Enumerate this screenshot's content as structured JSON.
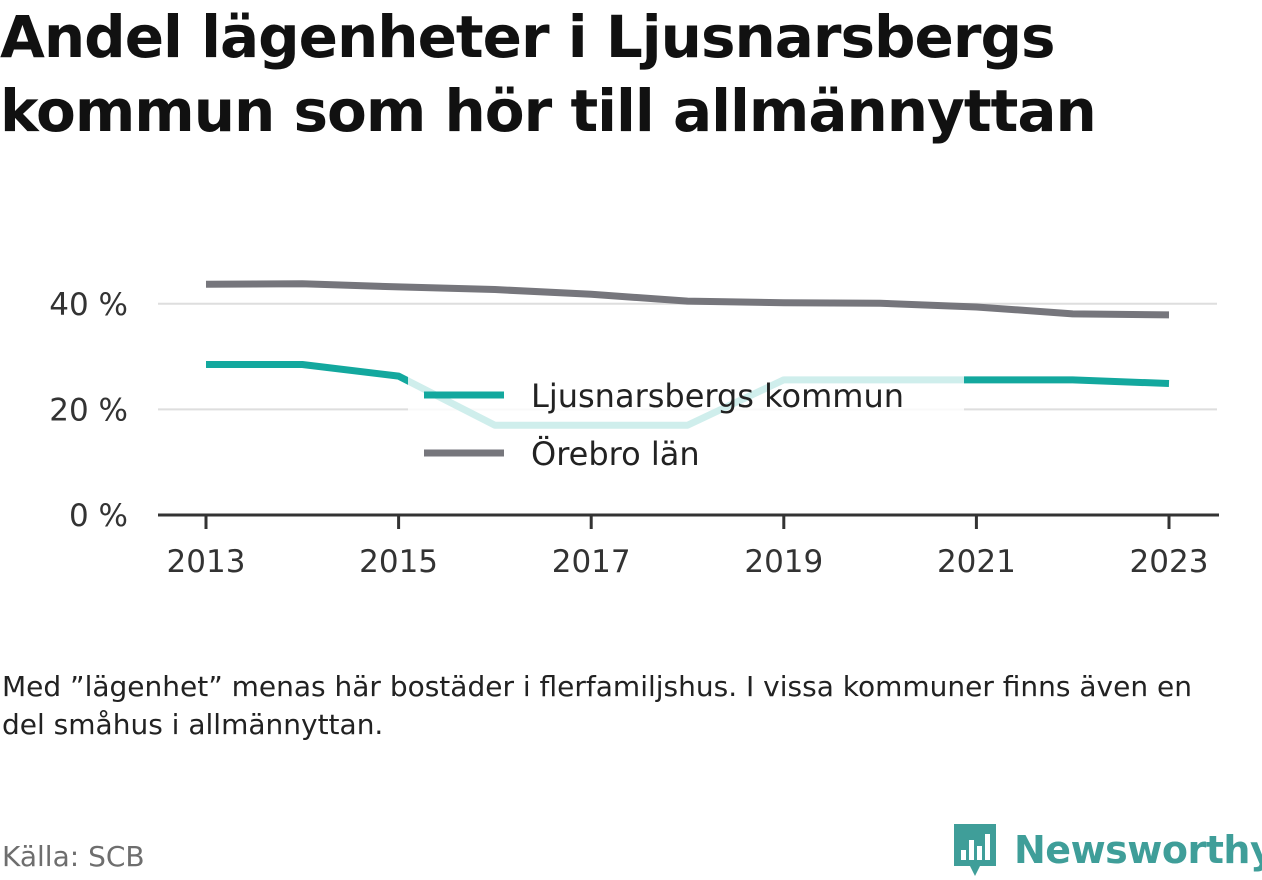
{
  "title_lines": [
    "Andel lägenheter i Ljusnarsbergs",
    "kommun som hör till allmännyttan"
  ],
  "note": "Med ”lägenhet” menas här bostäder i flerfamiljshus. I vissa kommuner finns även en del småhus i allmännyttan.",
  "source": "Källa: SCB",
  "brand": {
    "name": "Newsworthy",
    "icon": "newsworthy-logo-icon",
    "color": "#3f9e99"
  },
  "chart_data": {
    "type": "line",
    "x": [
      2013,
      2014,
      2015,
      2016,
      2017,
      2018,
      2019,
      2020,
      2021,
      2022,
      2023
    ],
    "x_ticks": [
      "2013",
      "2015",
      "2017",
      "2019",
      "2021",
      "2023"
    ],
    "y_ticks": [
      "0 %",
      "20 %",
      "40 %"
    ],
    "ylim": [
      0,
      45
    ],
    "grid": true,
    "legend_position": "center",
    "series": [
      {
        "name": "Ljusnarsbergs kommun",
        "color": "#13a89e",
        "values": [
          28.5,
          28.5,
          26.3,
          17.0,
          17.0,
          17.0,
          25.6,
          25.6,
          25.6,
          25.6,
          24.9
        ]
      },
      {
        "name": "Örebro län",
        "color": "#76767c",
        "values": [
          43.7,
          43.8,
          43.2,
          42.7,
          41.8,
          40.5,
          40.2,
          40.1,
          39.4,
          38.1,
          37.9
        ]
      }
    ]
  }
}
